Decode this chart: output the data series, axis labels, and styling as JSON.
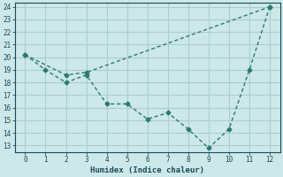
{
  "xlabel": "Humidex (Indice chaleur)",
  "line1_x": [
    0,
    1,
    2,
    3,
    4,
    5,
    6,
    7,
    8,
    9,
    10,
    11,
    12
  ],
  "line1_y": [
    20.2,
    19.0,
    18.0,
    18.6,
    16.3,
    16.3,
    15.1,
    15.6,
    14.3,
    12.8,
    14.3,
    19.0,
    24.0
  ],
  "line2_x": [
    0,
    2,
    3,
    12
  ],
  "line2_y": [
    20.2,
    18.6,
    18.8,
    24.0
  ],
  "line_color": "#2d7a6e",
  "bg_color": "#cce8e8",
  "grid_color": "#aacece",
  "ylim": [
    12.5,
    24.3
  ],
  "xlim": [
    -0.5,
    12.5
  ],
  "yticks": [
    13,
    14,
    15,
    16,
    17,
    18,
    19,
    20,
    21,
    22,
    23,
    24
  ],
  "xticks": [
    0,
    1,
    2,
    3,
    4,
    5,
    6,
    7,
    8,
    9,
    10,
    11,
    12
  ]
}
